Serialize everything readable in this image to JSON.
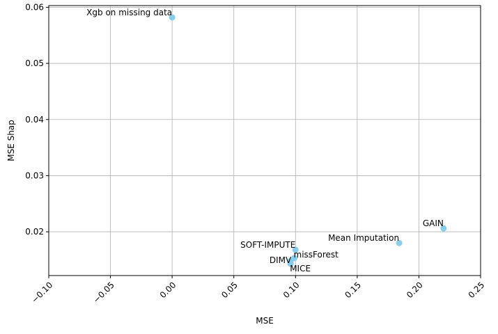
{
  "chart_data": {
    "type": "scatter",
    "title": "",
    "xlabel": "MSE",
    "ylabel": "MSE Shap",
    "xlim": [
      -0.1,
      0.25
    ],
    "ylim": [
      0.0122,
      0.0603
    ],
    "grid": true,
    "marker_color": "#87CEEB",
    "x_ticks": [
      -0.1,
      -0.05,
      0.0,
      0.05,
      0.1,
      0.15,
      0.2,
      0.25
    ],
    "x_tick_labels": [
      "−0.10",
      "−0.05",
      "0.00",
      "0.05",
      "0.10",
      "0.15",
      "0.20",
      "0.25"
    ],
    "y_ticks": [
      0.02,
      0.03,
      0.04,
      0.05,
      0.06
    ],
    "y_tick_labels": [
      "0.02",
      "0.03",
      "0.04",
      "0.05",
      "0.06"
    ],
    "points": [
      {
        "label": "Xgb on missing data",
        "x": 0.0,
        "y": 0.0582
      },
      {
        "label": "GAIN",
        "x": 0.22,
        "y": 0.0206
      },
      {
        "label": "Mean Imputation",
        "x": 0.184,
        "y": 0.018
      },
      {
        "label": "SOFT-IMPUTE",
        "x": 0.1,
        "y": 0.0168
      },
      {
        "label": "missForest",
        "x": 0.099,
        "y": 0.0153
      },
      {
        "label": "DIMV",
        "x": 0.096,
        "y": 0.0148
      },
      {
        "label": "MICE",
        "x": 0.096,
        "y": 0.0143
      }
    ]
  }
}
